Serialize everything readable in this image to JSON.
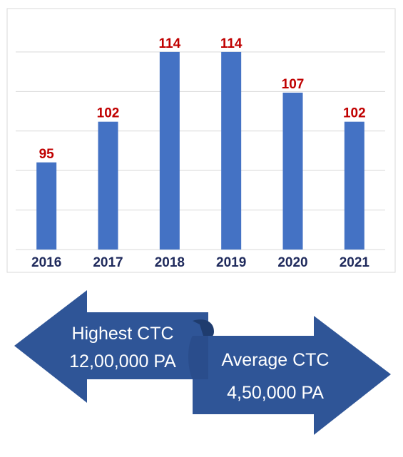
{
  "chart_data": {
    "type": "bar",
    "categories": [
      "2016",
      "2017",
      "2018",
      "2019",
      "2020",
      "2021"
    ],
    "values": [
      95,
      102,
      114,
      114,
      107,
      102
    ],
    "ylim": [
      80,
      120
    ],
    "grid": true,
    "title": "",
    "xlabel": "",
    "ylabel": "",
    "colors": {
      "bar": "#4472c4",
      "value_label": "#c00000",
      "tick_label": "#1f2a5c",
      "grid": "#d9d9d9",
      "border": "#d9d9d9"
    }
  },
  "ctc": {
    "highest": {
      "label": "Highest CTC",
      "value": "12,00,000 PA"
    },
    "average": {
      "label": "Average CTC",
      "value": "4,50,000 PA"
    },
    "colors": {
      "arrow_fill": "#2f5597",
      "arrow_dark": "#1f3c6e",
      "text": "#ffffff"
    }
  }
}
